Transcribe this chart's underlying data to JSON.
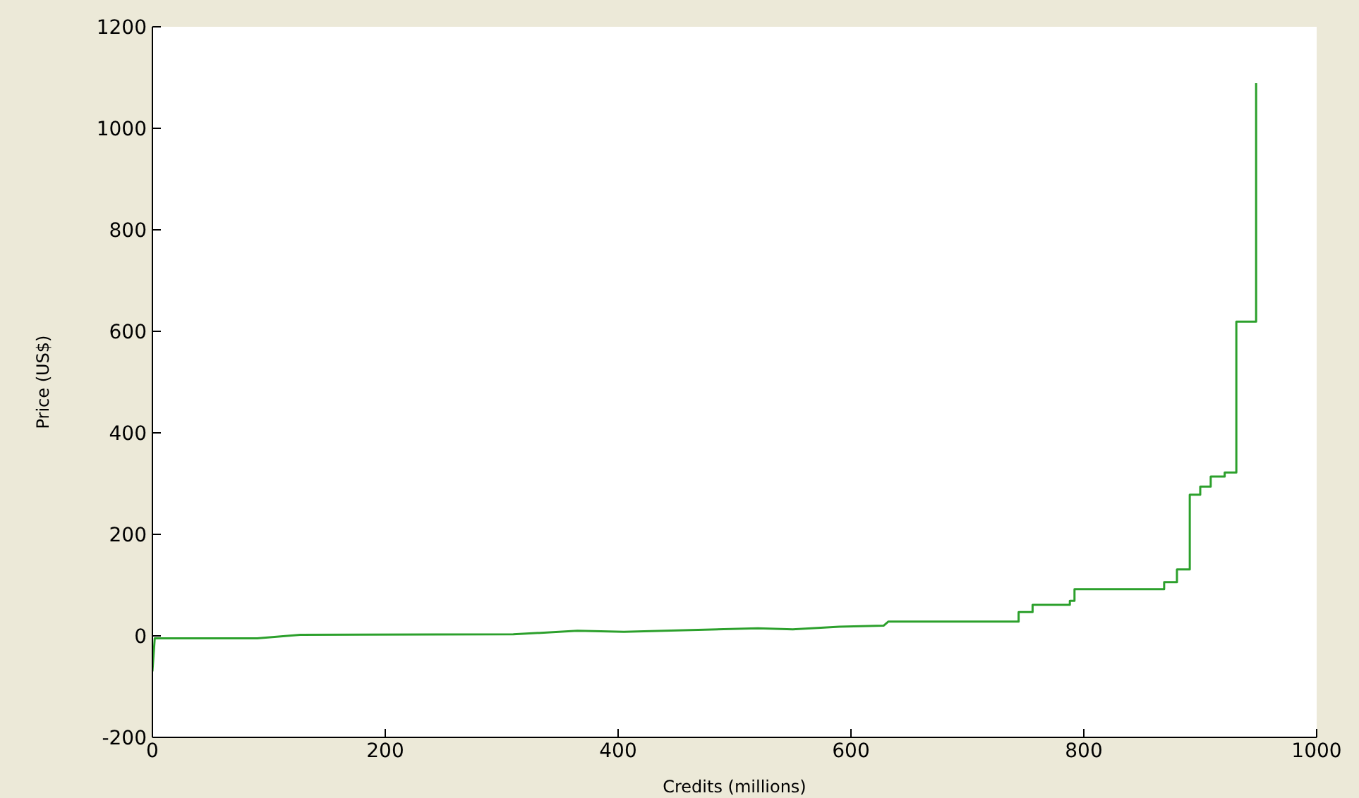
{
  "chart_data": {
    "type": "line",
    "xlabel": "Credits (millions)",
    "ylabel": "Price (US$)",
    "x": [
      0,
      2,
      90,
      127,
      310,
      365,
      405,
      520,
      550,
      590,
      628,
      632,
      744,
      744,
      756,
      756,
      788,
      788,
      792,
      792,
      869,
      869,
      880,
      880,
      891,
      891,
      900,
      900,
      909,
      909,
      921,
      921,
      931,
      931,
      948,
      948
    ],
    "series": [
      {
        "color": "#2ca02c",
        "values": [
          -70,
          -5,
          -5,
          2,
          3,
          10,
          8,
          15,
          13,
          18,
          20,
          28,
          28,
          47,
          47,
          61,
          61,
          69,
          69,
          92,
          92,
          106,
          106,
          131,
          131,
          278,
          278,
          294,
          294,
          314,
          314,
          322,
          322,
          619,
          619,
          1089
        ]
      }
    ],
    "xlim": [
      0,
      1000
    ],
    "xticks": [
      0,
      200,
      400,
      600,
      800,
      1000
    ],
    "ylim": [
      -200,
      1200
    ],
    "yticks": [
      -200,
      0,
      200,
      400,
      600,
      800,
      1000,
      1200
    ],
    "grid": false,
    "legend": false,
    "marker": "none",
    "line_style": "solid"
  }
}
